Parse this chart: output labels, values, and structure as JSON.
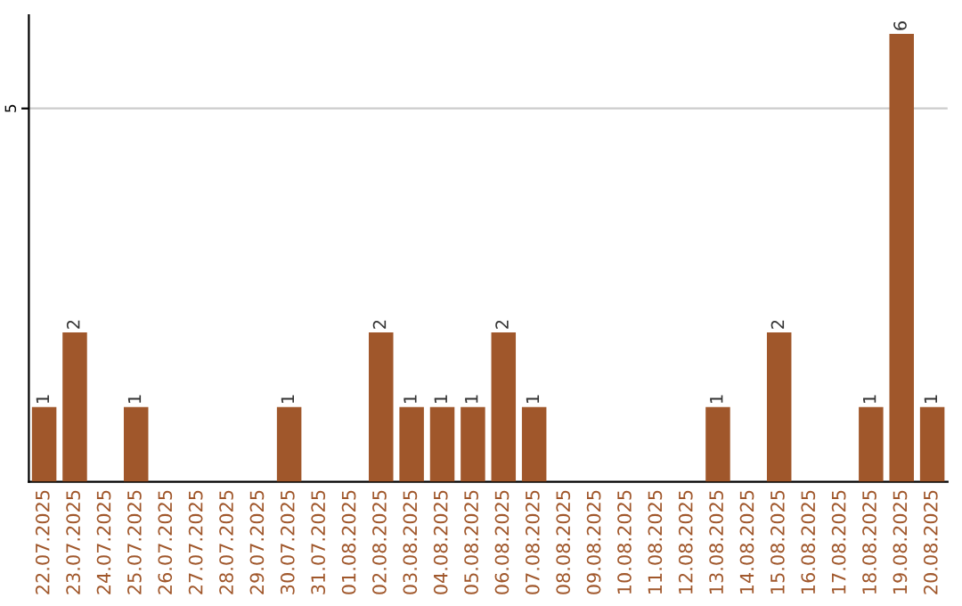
{
  "chart_data": {
    "type": "bar",
    "categories": [
      "22.07.2025",
      "23.07.2025",
      "24.07.2025",
      "25.07.2025",
      "26.07.2025",
      "27.07.2025",
      "28.07.2025",
      "29.07.2025",
      "30.07.2025",
      "31.07.2025",
      "01.08.2025",
      "02.08.2025",
      "03.08.2025",
      "04.08.2025",
      "05.08.2025",
      "06.08.2025",
      "07.08.2025",
      "08.08.2025",
      "09.08.2025",
      "10.08.2025",
      "11.08.2025",
      "12.08.2025",
      "13.08.2025",
      "14.08.2025",
      "15.08.2025",
      "16.08.2025",
      "17.08.2025",
      "18.08.2025",
      "19.08.2025",
      "20.08.2025"
    ],
    "values": [
      1,
      2,
      0,
      1,
      0,
      0,
      0,
      0,
      1,
      0,
      0,
      2,
      1,
      1,
      1,
      2,
      1,
      0,
      0,
      0,
      0,
      0,
      1,
      0,
      2,
      0,
      0,
      1,
      6,
      1
    ],
    "value_labels": [
      "1",
      "2",
      null,
      "1",
      null,
      null,
      null,
      null,
      "1",
      null,
      null,
      "2",
      "1",
      "1",
      "1",
      "2",
      "1",
      null,
      null,
      null,
      null,
      null,
      "1",
      null,
      "2",
      null,
      null,
      "1",
      "6",
      "1"
    ],
    "color": "#a0572b",
    "ylim": [
      0,
      6.25
    ],
    "yticks": [
      5
    ],
    "grid": "y"
  }
}
